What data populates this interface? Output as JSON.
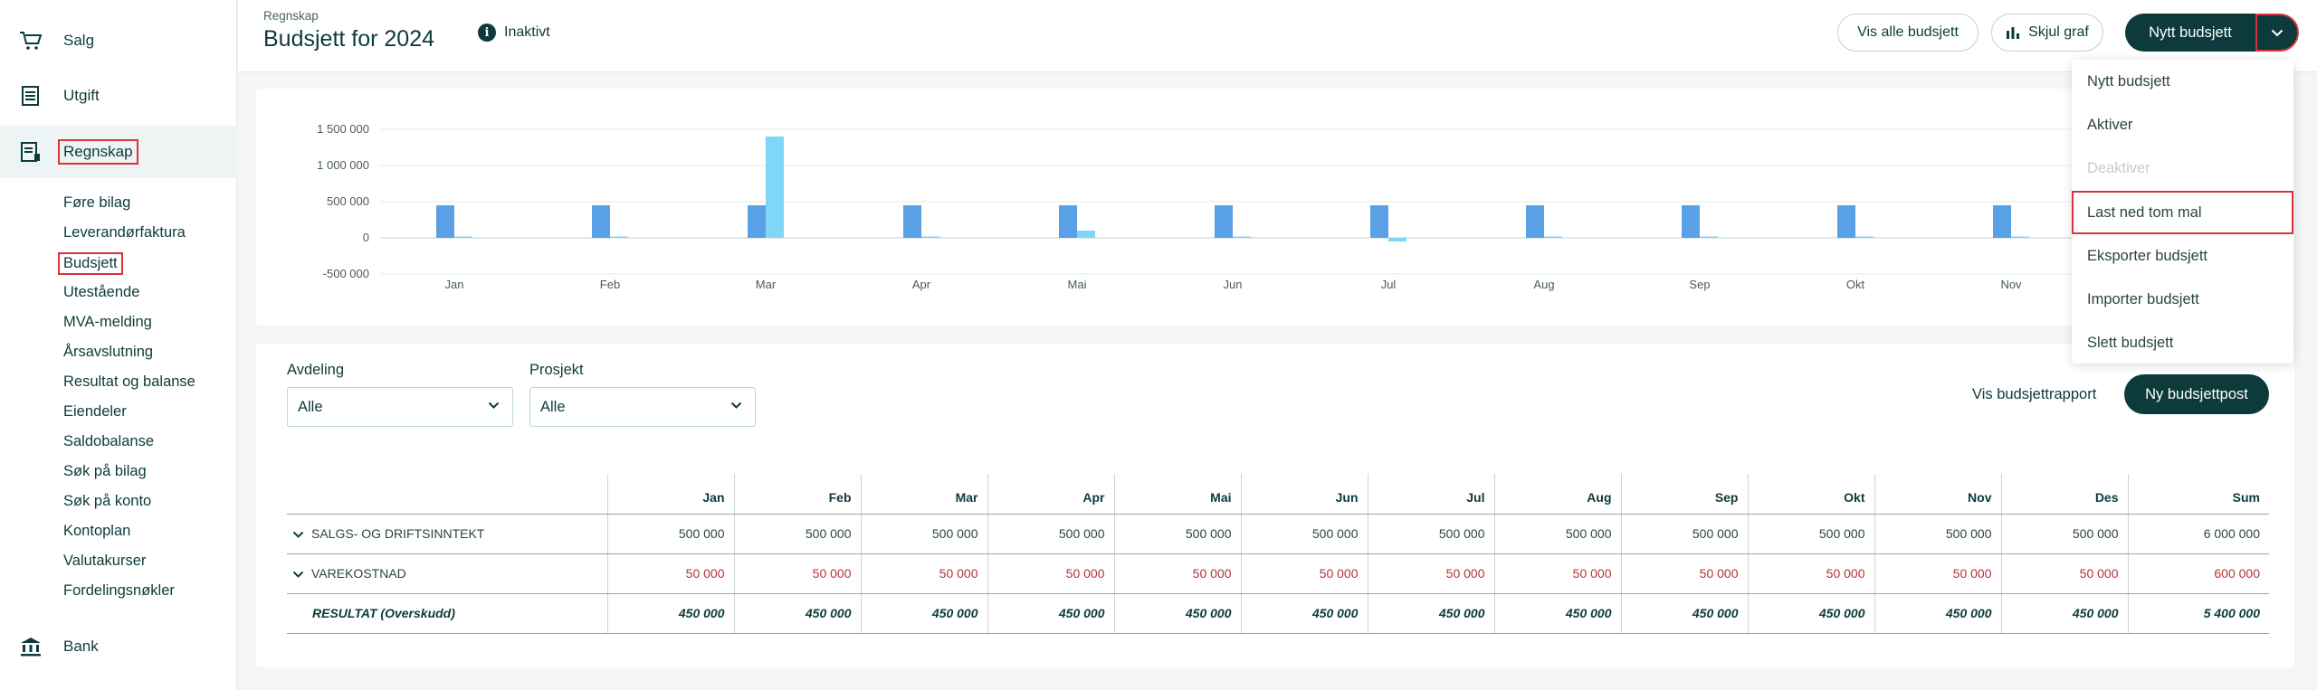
{
  "sidebar": {
    "main": [
      {
        "label": "Salg",
        "icon": "cart-icon"
      },
      {
        "label": "Utgift",
        "icon": "list-icon"
      },
      {
        "label": "Regnskap",
        "icon": "ledger-icon"
      },
      {
        "label": "Bank",
        "icon": "bank-icon"
      }
    ],
    "sub": [
      "Føre bilag",
      "Leverandørfaktura",
      "Budsjett",
      "Utestående",
      "MVA-melding",
      "Årsavslutning",
      "Resultat og balanse",
      "Eiendeler",
      "Saldobalanse",
      "Søk på bilag",
      "Søk på konto",
      "Kontoplan",
      "Valutakurser",
      "Fordelingsnøkler"
    ]
  },
  "header": {
    "breadcrumb": "Regnskap",
    "title": "Budsjett for 2024",
    "status": "Inaktivt",
    "btn_all": "Vis alle budsjett",
    "btn_graph": "Skjul graf",
    "btn_new": "Nytt budsjett"
  },
  "dropdown": [
    "Nytt budsjett",
    "Aktiver",
    "Deaktiver",
    "Last ned tom mal",
    "Eksporter budsjett",
    "Importer budsjett",
    "Slett budsjett"
  ],
  "filters": {
    "avdeling_label": "Avdeling",
    "avdeling_value": "Alle",
    "prosjekt_label": "Prosjekt",
    "prosjekt_value": "Alle"
  },
  "actions": {
    "report": "Vis budsjettrapport",
    "new_post": "Ny budsjettpost"
  },
  "table": {
    "headers": [
      "Jan",
      "Feb",
      "Mar",
      "Apr",
      "Mai",
      "Jun",
      "Jul",
      "Aug",
      "Sep",
      "Okt",
      "Nov",
      "Des",
      "Sum"
    ],
    "rows": [
      {
        "name": "SALGS- OG DRIFTSINNTEKT",
        "values": [
          "500 000",
          "500 000",
          "500 000",
          "500 000",
          "500 000",
          "500 000",
          "500 000",
          "500 000",
          "500 000",
          "500 000",
          "500 000",
          "500 000",
          "6 000 000"
        ]
      },
      {
        "name": "VAREKOSTNAD",
        "values": [
          "50 000",
          "50 000",
          "50 000",
          "50 000",
          "50 000",
          "50 000",
          "50 000",
          "50 000",
          "50 000",
          "50 000",
          "50 000",
          "50 000",
          "600 000"
        ]
      },
      {
        "name": "RESULTAT (Overskudd)",
        "values": [
          "450 000",
          "450 000",
          "450 000",
          "450 000",
          "450 000",
          "450 000",
          "450 000",
          "450 000",
          "450 000",
          "450 000",
          "450 000",
          "450 000",
          "5 400 000"
        ]
      }
    ]
  },
  "chart_data": {
    "type": "bar",
    "categories": [
      "Jan",
      "Feb",
      "Mar",
      "Apr",
      "Mai",
      "Jun",
      "Jul",
      "Aug",
      "Sep",
      "Okt",
      "Nov"
    ],
    "ytick_labels": [
      "1 500 000",
      "1 000 000",
      "500 000",
      "0",
      "-500 000"
    ],
    "ylim": [
      -500000,
      1500000
    ],
    "series": [
      {
        "values": [
          450000,
          450000,
          450000,
          450000,
          450000,
          450000,
          450000,
          450000,
          450000,
          450000,
          450000
        ],
        "color": "#5aa0e6"
      },
      {
        "values": [
          0,
          0,
          1400000,
          0,
          100000,
          0,
          -50000,
          0,
          0,
          0,
          0
        ],
        "color": "#7fd6f7"
      }
    ],
    "grid": true
  }
}
